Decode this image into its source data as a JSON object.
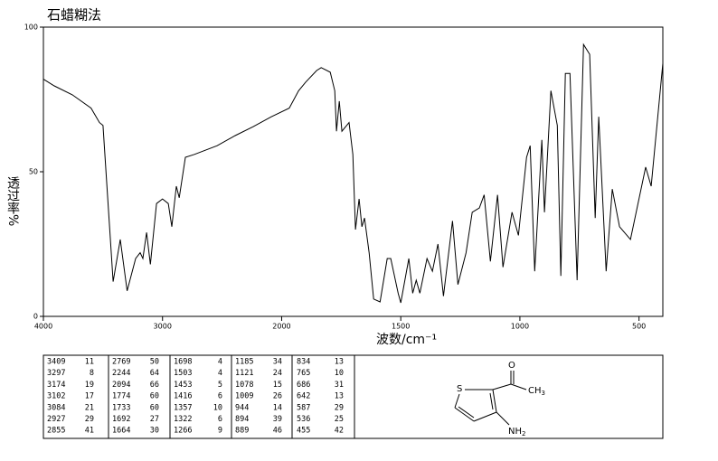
{
  "chart_data": {
    "type": "line",
    "title": "石蜡糊法",
    "x_label": "波数/cm⁻¹",
    "y_label": "透过率%",
    "color": "#000000",
    "x": [
      4000,
      3909,
      3757,
      3600,
      3529,
      3500,
      3415,
      3355,
      3297,
      3226,
      3188,
      3165,
      3134,
      3102,
      3050,
      3000,
      2952,
      2922,
      2884,
      2860,
      2808,
      2732,
      2542,
      2390,
      2238,
      2087,
      1968,
      1929,
      1899,
      1853,
      1834,
      1796,
      1777,
      1770,
      1758,
      1747,
      1717,
      1701,
      1690,
      1675,
      1663,
      1652,
      1633,
      1614,
      1587,
      1557,
      1542,
      1511,
      1500,
      1466,
      1450,
      1435,
      1420,
      1390,
      1367,
      1344,
      1321,
      1283,
      1260,
      1226,
      1200,
      1170,
      1150,
      1124,
      1094,
      1071,
      1033,
      1006,
      972,
      957,
      938,
      908,
      897,
      870,
      843,
      828,
      809,
      790,
      760,
      733,
      707,
      684,
      669,
      638,
      612,
      582,
      536,
      472,
      449,
      400
    ],
    "values": [
      82,
      79.7,
      76.6,
      72,
      67,
      66,
      12,
      26.6,
      8.8,
      20,
      22,
      20,
      29,
      18,
      39,
      40.6,
      39,
      31,
      45,
      41,
      55,
      56,
      59,
      62.5,
      65.6,
      69,
      72,
      78,
      81,
      85,
      86,
      84.4,
      78,
      64,
      74.4,
      64,
      67,
      56,
      30,
      40.6,
      31,
      34,
      22,
      6,
      5,
      20,
      20,
      8,
      4.7,
      20,
      8,
      12.5,
      8,
      20,
      15.6,
      25,
      7,
      33,
      11,
      22,
      36,
      37.5,
      42,
      19,
      42,
      17,
      36,
      28,
      55,
      59,
      15.6,
      61,
      36,
      78,
      66,
      14,
      84,
      84,
      12.5,
      94,
      90.6,
      34,
      69,
      15.6,
      44,
      31,
      26.6,
      51.6,
      45,
      87.5
    ],
    "xlim": [
      4000,
      400
    ],
    "ylim": [
      0,
      100
    ],
    "xticks": [
      4000,
      3000,
      2000,
      1500,
      1000,
      500
    ],
    "yticks": [
      0,
      50,
      100
    ]
  },
  "table": {
    "rows": [
      [
        3409,
        11,
        2769,
        50,
        1698,
        4,
        1185,
        34,
        834,
        13
      ],
      [
        3297,
        8,
        2244,
        64,
        1503,
        4,
        1121,
        24,
        765,
        10
      ],
      [
        3174,
        19,
        2094,
        66,
        1453,
        5,
        1078,
        15,
        686,
        31
      ],
      [
        3102,
        17,
        1774,
        60,
        1416,
        6,
        1009,
        26,
        642,
        13
      ],
      [
        3084,
        21,
        1733,
        60,
        1357,
        10,
        944,
        14,
        587,
        29
      ],
      [
        2927,
        29,
        1692,
        27,
        1322,
        6,
        894,
        39,
        536,
        25
      ],
      [
        2855,
        41,
        1664,
        30,
        1266,
        9,
        889,
        46,
        455,
        42
      ]
    ]
  },
  "structure": {
    "sulfur": "S",
    "oxygen": "O",
    "methyl": {
      "text": "CH",
      "sub": "3"
    },
    "amine": {
      "text": "NH",
      "sub": "2"
    }
  }
}
